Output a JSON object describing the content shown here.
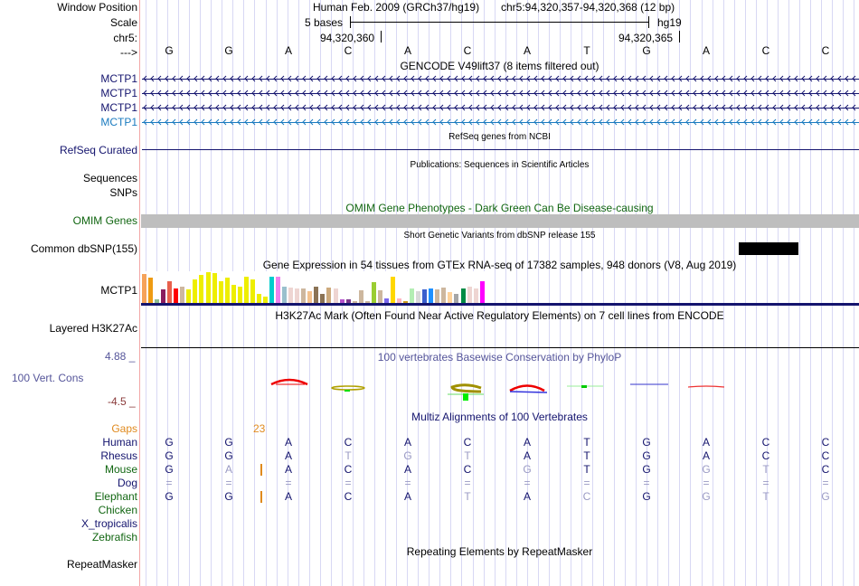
{
  "header": {
    "window_position_label": "Window Position",
    "scale_label": "Scale",
    "chrom_label": "chr5:",
    "strand_label": "--->",
    "assembly": "Human Feb. 2009 (GRCh37/hg19)",
    "position": "chr5:94,320,357-94,320,368 (12 bp)",
    "scale_text": "5 bases",
    "scale_db": "hg19",
    "coord_left": "94,320,360",
    "coord_right": "94,320,365"
  },
  "sequence": [
    "G",
    "G",
    "A",
    "C",
    "A",
    "C",
    "A",
    "T",
    "G",
    "A",
    "C",
    "C"
  ],
  "tracks": {
    "gencode": {
      "title": "GENCODE V49lift37 (8 items filtered out)",
      "items": [
        {
          "label": "MCTP1",
          "color": "#14146e"
        },
        {
          "label": "MCTP1",
          "color": "#14146e"
        },
        {
          "label": "MCTP1",
          "color": "#14146e"
        },
        {
          "label": "MCTP1",
          "color": "#1a7bbf"
        }
      ]
    },
    "refseq": {
      "title": "RefSeq genes from NCBI",
      "label": "RefSeq Curated"
    },
    "publications": {
      "title": "Publications: Sequences in Scientific Articles",
      "labels": [
        "Sequences",
        "SNPs"
      ]
    },
    "omim": {
      "title": "OMIM Gene Phenotypes - Dark Green Can Be Disease-causing",
      "label": "OMIM Genes"
    },
    "dbsnp": {
      "title": "Short Genetic Variants from dbSNP release 155",
      "label": "Common dbSNP(155)"
    },
    "gtex": {
      "title": "Gene Expression in 54 tissues from GTEx RNA-seq of 17382 samples, 948 donors (V8, Aug 2019)",
      "label": "MCTP1",
      "bars": [
        {
          "v": 0.95,
          "c": "#f6a35a"
        },
        {
          "v": 0.82,
          "c": "#ee9b13"
        },
        {
          "v": 0.12,
          "c": "#8fbc8f"
        },
        {
          "v": 0.45,
          "c": "#8a1c5e"
        },
        {
          "v": 0.7,
          "c": "#e8604c"
        },
        {
          "v": 0.46,
          "c": "#ff0000"
        },
        {
          "v": 0.52,
          "c": "#cdb79e"
        },
        {
          "v": 0.45,
          "c": "#eeee00"
        },
        {
          "v": 0.75,
          "c": "#eeee00"
        },
        {
          "v": 0.9,
          "c": "#eeee00"
        },
        {
          "v": 1.0,
          "c": "#eeee00"
        },
        {
          "v": 0.97,
          "c": "#eeee00"
        },
        {
          "v": 0.7,
          "c": "#eeee00"
        },
        {
          "v": 0.82,
          "c": "#eeee00"
        },
        {
          "v": 0.6,
          "c": "#eeee00"
        },
        {
          "v": 0.52,
          "c": "#eeee00"
        },
        {
          "v": 0.86,
          "c": "#eeee00"
        },
        {
          "v": 0.75,
          "c": "#eeee00"
        },
        {
          "v": 0.28,
          "c": "#eeee00"
        },
        {
          "v": 0.2,
          "c": "#eeee00"
        },
        {
          "v": 0.86,
          "c": "#00cdcd"
        },
        {
          "v": 0.86,
          "c": "#ee82ee"
        },
        {
          "v": 0.54,
          "c": "#9ac0cd"
        },
        {
          "v": 0.5,
          "c": "#eed5d2"
        },
        {
          "v": 0.46,
          "c": "#eed5d2"
        },
        {
          "v": 0.46,
          "c": "#cdb79e"
        },
        {
          "v": 0.38,
          "c": "#f4c28e"
        },
        {
          "v": 0.54,
          "c": "#8b7355"
        },
        {
          "v": 0.28,
          "c": "#8b7355"
        },
        {
          "v": 0.5,
          "c": "#cdaa7d"
        },
        {
          "v": 0.46,
          "c": "#eed5d2"
        },
        {
          "v": 0.12,
          "c": "#b452cd"
        },
        {
          "v": 0.12,
          "c": "#7a378b"
        },
        {
          "v": 0.07,
          "c": "#cdb79e"
        },
        {
          "v": 0.4,
          "c": "#cdb79e"
        },
        {
          "v": 0.07,
          "c": "#cdb79e"
        },
        {
          "v": 0.68,
          "c": "#9acd32"
        },
        {
          "v": 0.4,
          "c": "#cdb79e"
        },
        {
          "v": 0.15,
          "c": "#7b68ee"
        },
        {
          "v": 0.86,
          "c": "#ffd700"
        },
        {
          "v": 0.15,
          "c": "#ffb6c1"
        },
        {
          "v": 0.07,
          "c": "#cd9b1d"
        },
        {
          "v": 0.46,
          "c": "#b4eeb4"
        },
        {
          "v": 0.38,
          "c": "#d9d9d9"
        },
        {
          "v": 0.43,
          "c": "#3a5fcd"
        },
        {
          "v": 0.46,
          "c": "#1e90ff"
        },
        {
          "v": 0.43,
          "c": "#cdb79e"
        },
        {
          "v": 0.5,
          "c": "#cdb79e"
        },
        {
          "v": 0.36,
          "c": "#ffd39b"
        },
        {
          "v": 0.3,
          "c": "#a6a6a6"
        },
        {
          "v": 0.46,
          "c": "#008b45"
        },
        {
          "v": 0.52,
          "c": "#eed5d2"
        },
        {
          "v": 0.46,
          "c": "#eed5d2"
        },
        {
          "v": 0.7,
          "c": "#ff00ff"
        }
      ]
    },
    "h3k27ac": {
      "title": "H3K27Ac Mark (Often Found Near Active Regulatory Elements) on 7 cell lines from ENCODE",
      "label": "Layered H3K27Ac"
    },
    "phylop": {
      "title": "100 vertebrates Basewise Conservation by PhyloP",
      "label": "100 Vert. Cons",
      "max": "4.88 _",
      "min": "-4.5 _"
    },
    "multiz": {
      "title": "Multiz Alignments of 100 Vertebrates",
      "gaps_label": "Gaps",
      "gap_count": "23",
      "species": [
        {
          "name": "Human",
          "color": "#14146e",
          "bases": [
            "G",
            "G",
            "A",
            "C",
            "A",
            "C",
            "A",
            "T",
            "G",
            "A",
            "C",
            "C"
          ],
          "mismatch": [
            0,
            0,
            0,
            0,
            0,
            0,
            0,
            0,
            0,
            0,
            0,
            0
          ],
          "gap": false
        },
        {
          "name": "Rhesus",
          "color": "#14146e",
          "bases": [
            "G",
            "G",
            "A",
            "T",
            "G",
            "T",
            "A",
            "T",
            "G",
            "A",
            "C",
            "C"
          ],
          "mismatch": [
            0,
            0,
            0,
            1,
            1,
            1,
            0,
            0,
            0,
            0,
            0,
            0
          ],
          "gap": false
        },
        {
          "name": "Mouse",
          "color": "#116611",
          "bases": [
            "G",
            "A",
            "A",
            "C",
            "A",
            "C",
            "G",
            "T",
            "G",
            "G",
            "T",
            "C"
          ],
          "mismatch": [
            0,
            1,
            0,
            0,
            0,
            0,
            1,
            0,
            0,
            1,
            1,
            0
          ],
          "gap": true
        },
        {
          "name": "Dog",
          "color": "#14146e",
          "bases": [
            "=",
            "=",
            "=",
            "=",
            "=",
            "=",
            "=",
            "=",
            "=",
            "=",
            "=",
            "="
          ],
          "mismatch": [
            1,
            1,
            1,
            1,
            1,
            1,
            1,
            1,
            1,
            1,
            1,
            1
          ],
          "gap": false
        },
        {
          "name": "Elephant",
          "color": "#116611",
          "bases": [
            "G",
            "G",
            "A",
            "C",
            "A",
            "T",
            "A",
            "C",
            "G",
            "G",
            "T",
            "G"
          ],
          "mismatch": [
            0,
            0,
            0,
            0,
            0,
            1,
            0,
            1,
            0,
            1,
            1,
            1
          ],
          "gap": true
        },
        {
          "name": "Chicken",
          "color": "#116611",
          "bases": [],
          "mismatch": [],
          "gap": false
        },
        {
          "name": "X_tropicalis",
          "color": "#14146e",
          "bases": [],
          "mismatch": [],
          "gap": false
        },
        {
          "name": "Zebrafish",
          "color": "#116611",
          "bases": [],
          "mismatch": [],
          "gap": false
        }
      ]
    },
    "repeatmasker": {
      "title": "Repeating Elements by RepeatMasker",
      "label": "RepeatMasker"
    }
  }
}
